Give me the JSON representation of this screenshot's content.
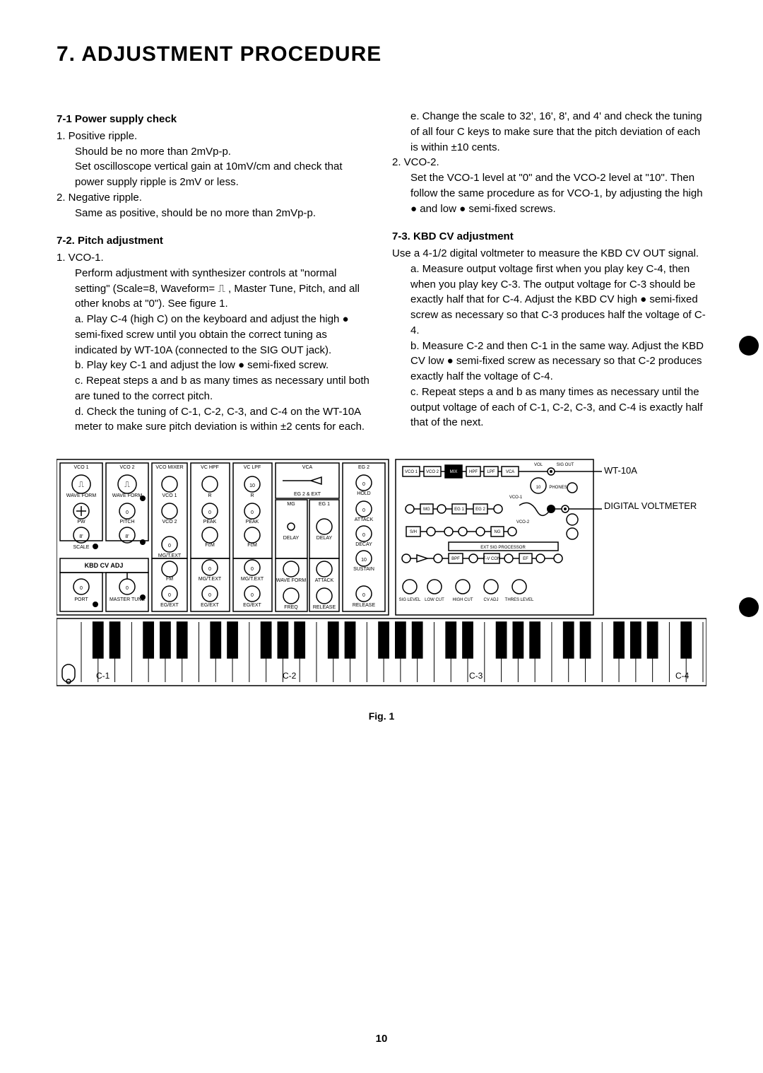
{
  "title": "7. ADJUSTMENT PROCEDURE",
  "left": {
    "s1_head": "7-1  Power supply check",
    "s1_1": "1.  Positive ripple.",
    "s1_1a": "Should be no more than 2mVp-p.",
    "s1_1b": "Set oscilloscope vertical gain at 10mV/cm and check that power supply ripple is 2mV or less.",
    "s1_2": "2.  Negative ripple.",
    "s1_2a": "Same as positive, should be no more than 2mVp-p.",
    "s2_head": "7-2.  Pitch adjustment",
    "s2_1": "1.  VCO-1.",
    "s2_1a": "Perform adjustment with synthesizer controls at \"normal setting\" (Scale=8, Waveform= ⎍ , Master Tune, Pitch, and all other knobs at \"0\"). See figure 1.",
    "s2_a": "a.  Play C-4 (high C) on the keyboard and adjust the high ● semi-fixed screw until you obtain the correct tuning as indicated by WT-10A (connected to the SIG OUT jack).",
    "s2_b": "b.  Play key C-1 and adjust the low ● semi-fixed screw.",
    "s2_c": "c.  Repeat steps a and b as many times as necessary until both are tuned to the correct pitch.",
    "s2_d": "d.  Check the tuning of C-1, C-2, C-3, and C-4 on the WT-10A meter to make sure pitch deviation is within ±2 cents for each."
  },
  "right": {
    "s2_e": "e.  Change the scale to 32', 16', 8', and 4' and check the tuning of all four C keys to make sure that the pitch deviation of each is within ±10 cents.",
    "s2_2": "2.  VCO-2.",
    "s2_2a": "Set the VCO-1 level at \"0\" and the VCO-2 level at \"10\". Then follow the same procedure as for VCO-1, by adjusting the high ● and low ● semi-fixed screws.",
    "s3_head": "7-3.  KBD CV adjustment",
    "s3_intro": "Use a 4-1/2 digital voltmeter to measure the KBD CV OUT signal.",
    "s3_a": "a.  Measure output voltage first when you play key C-4, then when you play key C-3. The output voltage for C-3 should be exactly half that for C-4. Adjust the KBD CV high ● semi-fixed screw as necessary so that C-3 produces half the voltage of C-4.",
    "s3_b": "b.  Measure C-2 and then C-1 in the same way. Adjust the KBD CV low ● semi-fixed screw as necessary so that C-2 produces exactly half the voltage of C-4.",
    "s3_c": "c.  Repeat steps a and b as many times as necessary until the output voltage of each of C-1, C-2, C-3, and C-4 is exactly half that of the next."
  },
  "figure": {
    "caption": "Fig. 1",
    "keys": {
      "c1": "C-1",
      "c2": "C-2",
      "c3": "C-3",
      "c4": "C-4"
    },
    "labels": {
      "vco1": "VCO 1",
      "vco2": "VCO 2",
      "vcomixer": "VCO MIXER",
      "vchpf": "VC HPF",
      "vclpf": "VC LPF",
      "vca": "VCA",
      "eg2": "EG 2",
      "waveform": "WAVE FORM",
      "scale": "SCALE",
      "kbdcv": "KBD CV ADJ",
      "port": "PORT",
      "master": "MASTER TUNE",
      "pw": "PW",
      "pitch": "PITCH",
      "vco1l": "VCO 1",
      "vco2l": "VCO 2",
      "r": "R",
      "peak": "PEAK",
      "fm": "FM",
      "fcm": "FcM",
      "mgtext": "MG/T.EXT",
      "egext": "EG/EXT",
      "mg": "MG",
      "eg1": "EG 1",
      "eg2b": "EG 2 & EXT",
      "attack": "ATTACK",
      "delay": "DELAY",
      "freq": "FREQ",
      "hold": "HOLD",
      "decay": "DECAY",
      "sustain": "SUSTAIN",
      "release": "RELEASE",
      "wt10a": "WT-10A",
      "digital": "DIGITAL VOLTMETER",
      "sigout": "SIG OUT",
      "vol": "VOL",
      "phones": "PHONES",
      "siglevel": "SIG LEVEL",
      "lowcut": "LOW CUT",
      "highcut": "HIGH CUT",
      "cvadj": "CV ADJ",
      "thres": "THRES LEVEL",
      "extsig": "EXT SIG PROCESSOR",
      "sh": "S/H",
      "ng": "NG",
      "ef": "EF",
      "fv": "F-V CON",
      "bpf": "BPF",
      "ten": "10",
      "zero": "0",
      "eight": "8'"
    },
    "colors": {
      "line": "#000000",
      "bg": "#ffffff"
    }
  },
  "page": "10"
}
